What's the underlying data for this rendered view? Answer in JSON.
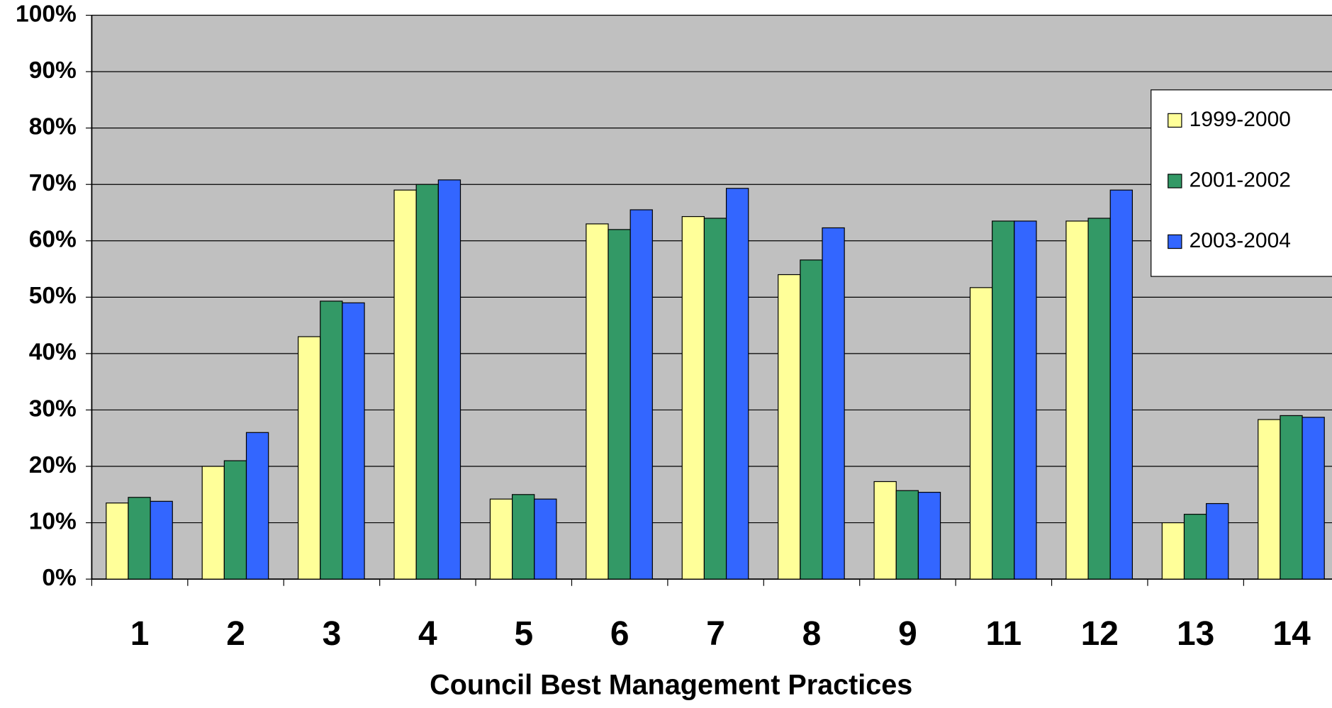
{
  "chart_data": {
    "type": "bar",
    "x_label": "Council Best Management Practices",
    "categories": [
      "1",
      "2",
      "3",
      "4",
      "5",
      "6",
      "7",
      "8",
      "9",
      "11",
      "12",
      "13",
      "14"
    ],
    "series": [
      {
        "name": "1999-2000",
        "color": "#ffff99",
        "values": [
          13.5,
          20,
          43,
          69,
          14.2,
          63,
          64.3,
          54,
          17.3,
          51.7,
          63.5,
          10,
          28.3
        ]
      },
      {
        "name": "2001-2002",
        "color": "#339966",
        "values": [
          14.5,
          21,
          49.3,
          70,
          15,
          62,
          64,
          56.6,
          15.7,
          63.5,
          64,
          11.5,
          29
        ]
      },
      {
        "name": "2003-2004",
        "color": "#3366ff",
        "values": [
          13.8,
          26,
          49,
          70.8,
          14.2,
          65.5,
          69.3,
          62.3,
          15.4,
          63.5,
          69,
          13.4,
          28.7
        ]
      }
    ],
    "ylim": [
      0,
      100
    ],
    "yticks": [
      {
        "value": 0,
        "label": "0%"
      },
      {
        "value": 10,
        "label": "10%"
      },
      {
        "value": 20,
        "label": "20%"
      },
      {
        "value": 30,
        "label": "30%"
      },
      {
        "value": 40,
        "label": "40%"
      },
      {
        "value": 50,
        "label": "50%"
      },
      {
        "value": 60,
        "label": "60%"
      },
      {
        "value": 70,
        "label": "70%"
      },
      {
        "value": 80,
        "label": "80%"
      },
      {
        "value": 90,
        "label": "90%"
      },
      {
        "value": 100,
        "label": "100%"
      }
    ],
    "grid": true,
    "legend": "right"
  }
}
